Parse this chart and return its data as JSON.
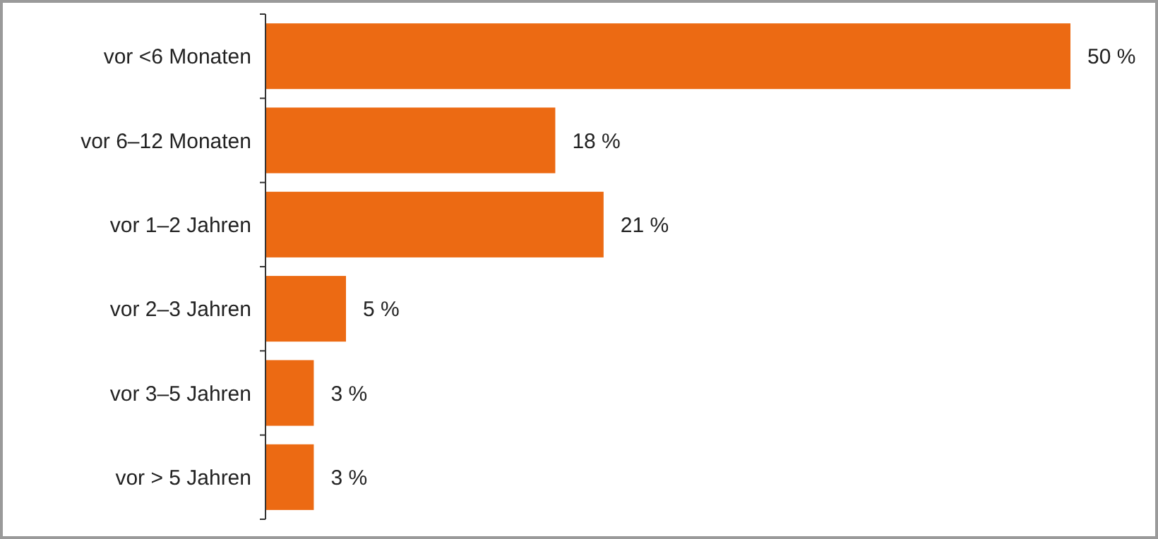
{
  "chart_data": {
    "type": "bar",
    "orientation": "horizontal",
    "categories": [
      "vor <6 Monaten",
      "vor 6–12 Monaten",
      "vor 1–2 Jahren",
      "vor 2–3 Jahren",
      "vor 3–5 Jahren",
      "vor > 5 Jahren"
    ],
    "values": [
      50,
      18,
      21,
      5,
      3,
      3
    ],
    "value_labels": [
      "50 %",
      "18 %",
      "21 %",
      "5 %",
      "3 %",
      "3 %"
    ],
    "color": "#ec6a13"
  }
}
